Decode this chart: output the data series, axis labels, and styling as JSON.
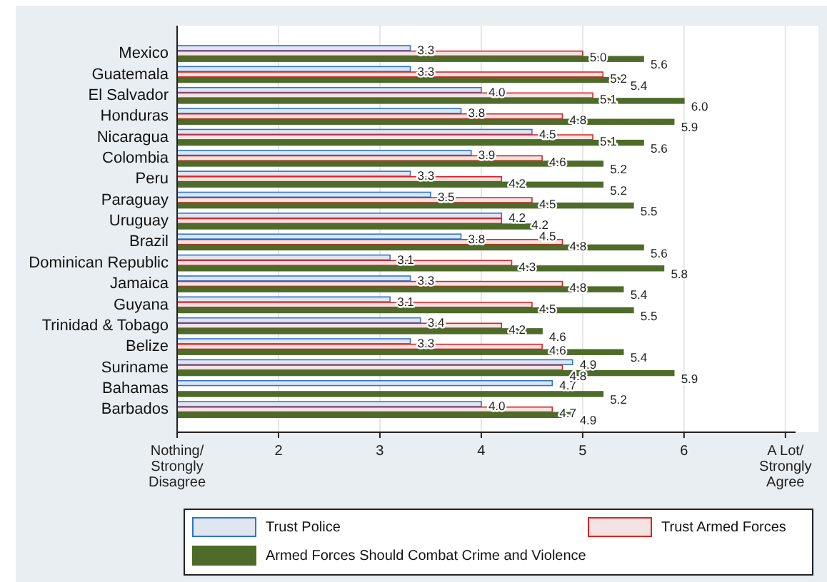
{
  "chart_data": {
    "type": "bar",
    "orientation": "horizontal",
    "categories": [
      "Mexico",
      "Guatemala",
      "El Salvador",
      "Honduras",
      "Nicaragua",
      "Colombia",
      "Peru",
      "Paraguay",
      "Uruguay",
      "Brazil",
      "Dominican Republic",
      "Jamaica",
      "Guyana",
      "Trinidad & Tobago",
      "Belize",
      "Suriname",
      "Bahamas",
      "Barbados"
    ],
    "series": [
      {
        "name": "Trust Police",
        "color": "#dfe6ef",
        "values": [
          3.3,
          3.3,
          4.0,
          3.8,
          4.5,
          3.9,
          3.3,
          3.5,
          4.2,
          3.8,
          3.1,
          3.3,
          3.1,
          3.4,
          3.3,
          4.9,
          4.7,
          4.0
        ],
        "value_labels": [
          "3.3",
          "3.3",
          "4.0",
          "3.8",
          "4.5",
          "3.9",
          "3.3",
          "3.5",
          "4.2",
          "3.8",
          "3.1",
          "3.3",
          "3.1",
          "3.4",
          "3.3",
          "4.9",
          "4.7",
          "4.0"
        ]
      },
      {
        "name": "Trust Armed Forces",
        "color": "#f4e3e3",
        "values": [
          5.0,
          5.2,
          5.1,
          4.8,
          5.1,
          4.6,
          4.2,
          4.5,
          4.2,
          4.8,
          4.3,
          4.8,
          4.5,
          4.2,
          4.6,
          4.8,
          null,
          4.7
        ],
        "value_labels": [
          "5.0",
          "5.2",
          "5.1",
          "4.8",
          "5.1",
          "4.6",
          "4.2",
          "4.5",
          "4.2",
          "4.8",
          "4.3",
          "4.8",
          "4.5",
          "4.2",
          "4.6",
          "4.8",
          null,
          "4.7"
        ]
      },
      {
        "name": "Armed Forces Should Combat Crime and Violence",
        "color": "#4e6b2a",
        "values": [
          5.6,
          5.4,
          6.0,
          5.9,
          5.6,
          5.2,
          5.2,
          5.5,
          4.5,
          5.6,
          5.8,
          5.4,
          5.5,
          4.6,
          5.4,
          5.9,
          5.2,
          4.9
        ],
        "value_labels": [
          "5.6",
          "5.4",
          "6.0",
          "5.9",
          "5.6",
          "5.2",
          "5.2",
          "5.5",
          "4.5",
          "5.6",
          "5.8",
          "5.4",
          "5.5",
          "4.6",
          "5.4",
          "5.9",
          "5.2",
          "4.9"
        ]
      }
    ],
    "xlim": [
      1,
      7.1
    ],
    "xticks": [
      {
        "value": 1,
        "label": "Nothing/\nStrongly\nDisagree"
      },
      2,
      3,
      4,
      5,
      6,
      {
        "value": 7,
        "label": "A Lot/\nStrongly\nAgree"
      }
    ],
    "grid": "x",
    "legend": "bottom"
  }
}
